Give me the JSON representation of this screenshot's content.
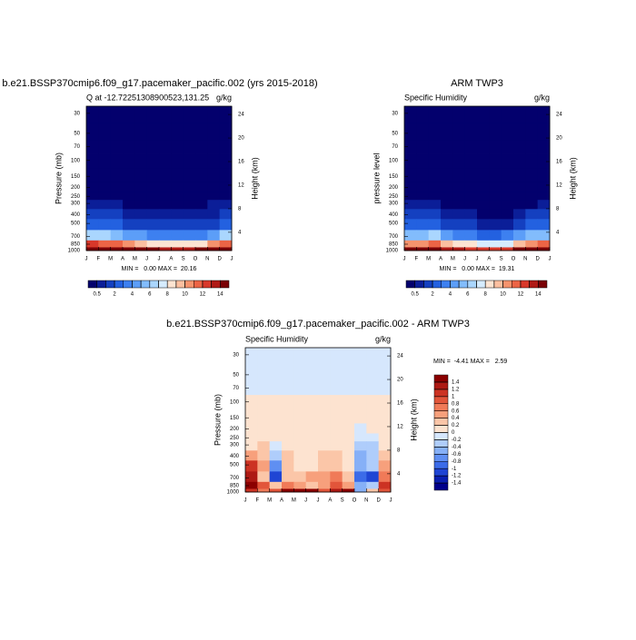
{
  "chart_data": [
    {
      "type": "contour",
      "title": "b.e21.BSSP370cmip6.f09_g17.pacemaker_pacific.002 (yrs 2015-2018)",
      "left_title": "Q at -12.72251308900523,131.25",
      "right_title": "g/kg",
      "ylabel": "Pressure (mb)",
      "y2label": "Height (km)",
      "categories": [
        "J",
        "F",
        "M",
        "A",
        "M",
        "J",
        "J",
        "A",
        "S",
        "O",
        "N",
        "D",
        "J"
      ],
      "levels_y": [
        30,
        50,
        70,
        100,
        150,
        200,
        250,
        300,
        400,
        500,
        700,
        850,
        1000
      ],
      "values": [
        [
          0.01,
          0.01,
          0.01,
          0.01,
          0.01,
          0.01,
          0.01,
          0.01,
          0.01,
          0.01,
          0.01,
          0.01
        ],
        [
          0.01,
          0.01,
          0.01,
          0.01,
          0.01,
          0.01,
          0.01,
          0.01,
          0.01,
          0.01,
          0.01,
          0.01
        ],
        [
          0.01,
          0.01,
          0.01,
          0.01,
          0.01,
          0.01,
          0.01,
          0.01,
          0.01,
          0.01,
          0.01,
          0.01
        ],
        [
          0.01,
          0.01,
          0.01,
          0.01,
          0.01,
          0.01,
          0.01,
          0.01,
          0.01,
          0.01,
          0.01,
          0.01
        ],
        [
          0.02,
          0.02,
          0.02,
          0.02,
          0.02,
          0.02,
          0.02,
          0.02,
          0.02,
          0.02,
          0.02,
          0.02
        ],
        [
          0.05,
          0.05,
          0.04,
          0.04,
          0.03,
          0.03,
          0.03,
          0.03,
          0.03,
          0.03,
          0.04,
          0.05
        ],
        [
          0.2,
          0.15,
          0.1,
          0.1,
          0.08,
          0.06,
          0.05,
          0.05,
          0.05,
          0.06,
          0.1,
          0.2
        ],
        [
          0.7,
          0.6,
          0.5,
          0.4,
          0.3,
          0.2,
          0.2,
          0.2,
          0.2,
          0.3,
          0.5,
          0.7
        ],
        [
          1.6,
          1.4,
          1.2,
          0.9,
          0.7,
          0.6,
          0.5,
          0.5,
          0.5,
          0.6,
          0.9,
          1.5
        ],
        [
          2.8,
          2.5,
          2.2,
          1.8,
          1.4,
          1.2,
          1.0,
          1.0,
          1.0,
          1.1,
          1.6,
          2.6
        ],
        [
          6.5,
          6,
          5.5,
          4.8,
          4,
          3.5,
          3.2,
          3.2,
          3.3,
          3.8,
          4.8,
          6.2
        ],
        [
          12,
          11.5,
          11,
          10,
          9,
          8.5,
          8,
          8,
          8,
          8.6,
          10,
          11.8
        ],
        [
          16,
          15.8,
          15.5,
          15,
          14.5,
          14,
          13.5,
          13.5,
          13.6,
          14,
          15,
          15.8
        ]
      ],
      "ylim": [
        1000,
        25
      ],
      "log_y": true,
      "yticks": [
        30,
        50,
        70,
        100,
        150,
        200,
        250,
        300,
        400,
        500,
        700,
        850,
        1000
      ],
      "y2lim": [
        0.9,
        25.4
      ],
      "y2ticks": [
        4,
        8,
        12,
        16,
        20,
        24
      ],
      "annotation": "MIN =   0.00 MAX =  20.16",
      "colorbar": {
        "orientation": "horizontal",
        "levels": [
          0.5,
          1,
          2,
          3,
          4,
          5,
          6,
          7,
          8,
          9,
          10,
          11,
          12,
          13,
          14
        ],
        "ticks": [
          0.5,
          2,
          4,
          6,
          8,
          10,
          12,
          14
        ],
        "colors": [
          "#03006d",
          "#0b1e98",
          "#1440c0",
          "#2361e0",
          "#3d80f0",
          "#5c9ef8",
          "#82bcfc",
          "#aad6fe",
          "#d6ecff",
          "#fde4d2",
          "#fbbfa0",
          "#f5936d",
          "#ec6445",
          "#d8382a",
          "#b01a16",
          "#7a0005"
        ]
      }
    },
    {
      "type": "contour",
      "title": "ARM TWP3",
      "left_title": "Specific Humidity",
      "right_title": "g/kg",
      "ylabel": "pressure level",
      "y2label": "Height (km)",
      "categories": [
        "J",
        "F",
        "M",
        "A",
        "M",
        "J",
        "J",
        "A",
        "S",
        "O",
        "N",
        "D",
        "J"
      ],
      "levels_y": [
        30,
        50,
        70,
        100,
        150,
        200,
        250,
        300,
        400,
        500,
        700,
        850,
        1000
      ],
      "values": [
        [
          0.01,
          0.01,
          0.01,
          0.01,
          0.01,
          0.01,
          0.01,
          0.01,
          0.01,
          0.01,
          0.01,
          0.01
        ],
        [
          0.01,
          0.01,
          0.01,
          0.01,
          0.01,
          0.01,
          0.01,
          0.01,
          0.01,
          0.01,
          0.01,
          0.01
        ],
        [
          0.01,
          0.01,
          0.01,
          0.01,
          0.01,
          0.01,
          0.01,
          0.01,
          0.01,
          0.01,
          0.01,
          0.01
        ],
        [
          0.01,
          0.01,
          0.01,
          0.01,
          0.01,
          0.01,
          0.01,
          0.01,
          0.01,
          0.01,
          0.01,
          0.01
        ],
        [
          0.02,
          0.02,
          0.02,
          0.02,
          0.02,
          0.02,
          0.02,
          0.02,
          0.02,
          0.02,
          0.02,
          0.02
        ],
        [
          0.04,
          0.04,
          0.04,
          0.04,
          0.03,
          0.03,
          0.03,
          0.03,
          0.03,
          0.03,
          0.04,
          0.04
        ],
        [
          0.15,
          0.12,
          0.1,
          0.08,
          0.07,
          0.05,
          0.05,
          0.05,
          0.05,
          0.05,
          0.08,
          0.15
        ],
        [
          0.6,
          0.5,
          0.5,
          0.3,
          0.2,
          0.2,
          0.15,
          0.15,
          0.15,
          0.2,
          0.4,
          0.6
        ],
        [
          1.3,
          1.2,
          1.4,
          0.8,
          0.6,
          0.5,
          0.4,
          0.4,
          0.4,
          0.8,
          1.2,
          1.3
        ],
        [
          2.2,
          2.1,
          2.6,
          1.6,
          1.3,
          1.1,
          0.9,
          0.8,
          0.9,
          1.6,
          2.0,
          2.3
        ],
        [
          5.5,
          5.6,
          6.6,
          4.5,
          3.8,
          3.2,
          2.8,
          2.7,
          3.1,
          4.8,
          5.9,
          5.7
        ],
        [
          10.8,
          10.8,
          11,
          9.5,
          8.6,
          8.2,
          7.5,
          7.2,
          7.6,
          9.2,
          10.4,
          11
        ],
        [
          15,
          15.2,
          14.8,
          13.6,
          13,
          12.5,
          12.6,
          12.4,
          12.2,
          14.6,
          14.8,
          15
        ]
      ],
      "ylim": [
        1000,
        25
      ],
      "log_y": true,
      "yticks": [
        30,
        50,
        70,
        100,
        150,
        200,
        250,
        300,
        400,
        500,
        700,
        850,
        1000
      ],
      "y2lim": [
        0.9,
        25.4
      ],
      "y2ticks": [
        4,
        8,
        12,
        16,
        20,
        24
      ],
      "annotation": "MIN =   0.00 MAX =  19.31",
      "colorbar": {
        "orientation": "horizontal",
        "levels": [
          0.5,
          1,
          2,
          3,
          4,
          5,
          6,
          7,
          8,
          9,
          10,
          11,
          12,
          13,
          14
        ],
        "ticks": [
          0.5,
          2,
          4,
          6,
          8,
          10,
          12,
          14
        ],
        "colors": [
          "#03006d",
          "#0b1e98",
          "#1440c0",
          "#2361e0",
          "#3d80f0",
          "#5c9ef8",
          "#82bcfc",
          "#aad6fe",
          "#d6ecff",
          "#fde4d2",
          "#fbbfa0",
          "#f5936d",
          "#ec6445",
          "#d8382a",
          "#b01a16",
          "#7a0005"
        ]
      }
    },
    {
      "type": "contour",
      "title": "b.e21.BSSP370cmip6.f09_g17.pacemaker_pacific.002 - ARM TWP3",
      "left_title": "Specific Humidity",
      "right_title": "g/kg",
      "ylabel": "Pressure (mb)",
      "y2label": "Height (km)",
      "categories": [
        "J",
        "F",
        "M",
        "A",
        "M",
        "J",
        "J",
        "A",
        "S",
        "O",
        "N",
        "D",
        "J"
      ],
      "levels_y": [
        30,
        50,
        70,
        100,
        150,
        200,
        250,
        300,
        400,
        500,
        700,
        850,
        1000
      ],
      "values": [
        [
          -0.1,
          -0.1,
          -0.1,
          -0.1,
          -0.1,
          -0.1,
          -0.1,
          -0.1,
          -0.1,
          -0.1,
          -0.1,
          -0.1
        ],
        [
          -0.1,
          -0.1,
          -0.1,
          -0.1,
          -0.1,
          -0.1,
          -0.1,
          -0.1,
          -0.1,
          -0.1,
          -0.1,
          -0.1
        ],
        [
          -0.1,
          -0.1,
          -0.1,
          -0.1,
          -0.1,
          -0.1,
          -0.1,
          -0.1,
          -0.1,
          -0.1,
          -0.1,
          -0.1
        ],
        [
          0.1,
          0.1,
          0.1,
          0.1,
          0.1,
          0.1,
          0.1,
          0.1,
          0.1,
          0.1,
          0.1,
          0.1
        ],
        [
          0.1,
          0.1,
          0.1,
          0.1,
          0.1,
          0.1,
          0.1,
          0.1,
          0.1,
          0.1,
          0.1,
          0.1
        ],
        [
          0.1,
          0.1,
          0.1,
          0.1,
          0.1,
          0.1,
          0.1,
          0.1,
          0.1,
          -0.1,
          0.1,
          0.1
        ],
        [
          0.1,
          0.1,
          0.1,
          0.1,
          0.1,
          0.1,
          0.1,
          0.1,
          0.1,
          -0.1,
          -0.1,
          0.1
        ],
        [
          0.1,
          0.2,
          -0.1,
          0.1,
          0.1,
          0.1,
          0.1,
          0.1,
          0.1,
          -0.3,
          -0.4,
          0.1
        ],
        [
          0.5,
          0.3,
          -0.4,
          0.2,
          0.1,
          0.1,
          0.2,
          0.2,
          0.1,
          -0.5,
          -0.4,
          0.3
        ],
        [
          1.0,
          0.4,
          -0.8,
          0.2,
          0.1,
          0.1,
          0.2,
          0.3,
          0.1,
          -0.6,
          -0.3,
          0.4
        ],
        [
          1.2,
          0.3,
          -1.2,
          0.3,
          0.2,
          0.4,
          0.5,
          0.6,
          0.2,
          -1.0,
          -1.2,
          0.6
        ],
        [
          1.6,
          0.8,
          0.2,
          0.6,
          0.4,
          0.3,
          0.5,
          0.8,
          0.4,
          -0.6,
          -0.4,
          1.0
        ],
        [
          1.0,
          0.6,
          0.8,
          1.4,
          1.5,
          1.6,
          0.9,
          1.2,
          1.5,
          -0.6,
          0.3,
          0.8
        ]
      ],
      "ylim": [
        1000,
        25
      ],
      "log_y": true,
      "yticks": [
        30,
        50,
        70,
        100,
        150,
        200,
        250,
        300,
        400,
        500,
        700,
        850,
        1000
      ],
      "y2lim": [
        0.9,
        25.4
      ],
      "y2ticks": [
        4,
        8,
        12,
        16,
        20,
        24
      ],
      "annotation": "MIN =  -4.41 MAX =   2.59",
      "colorbar": {
        "orientation": "vertical",
        "levels": [
          -1.4,
          -1.2,
          -1,
          -0.8,
          -0.6,
          -0.4,
          -0.2,
          0,
          0.2,
          0.4,
          0.6,
          0.8,
          1,
          1.2,
          1.4
        ],
        "ticks": [
          -1.4,
          -1.2,
          -1,
          -0.8,
          -0.6,
          -0.4,
          -0.2,
          0,
          0.2,
          0.4,
          0.6,
          0.8,
          1,
          1.2,
          1.4
        ],
        "colors": [
          "#00008b",
          "#0a1fb0",
          "#1f45d4",
          "#3b6be8",
          "#5f8ff2",
          "#86b0f7",
          "#afcdfb",
          "#d6e7fd",
          "#fde3d0",
          "#fbc6a8",
          "#f7a07c",
          "#f07a58",
          "#e2553a",
          "#cc3323",
          "#ad1a14",
          "#8b0000"
        ]
      }
    }
  ]
}
